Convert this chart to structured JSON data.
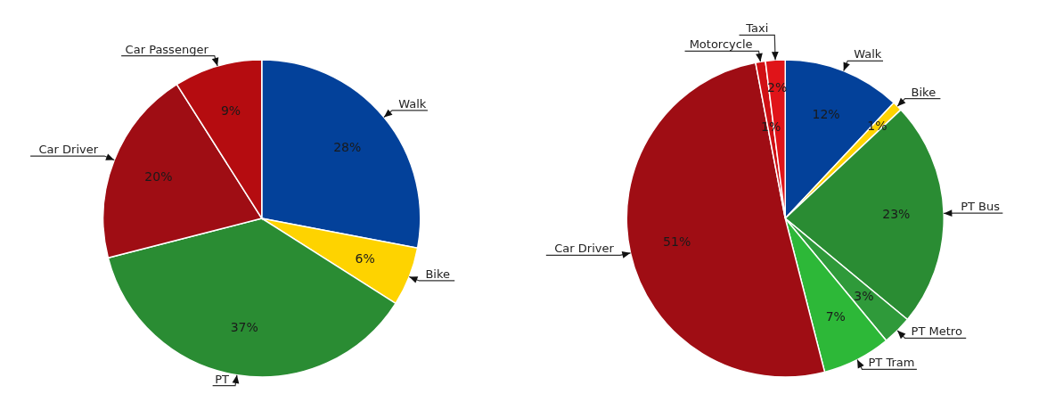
{
  "chart_data": [
    {
      "type": "pie",
      "categories": [
        "Walk",
        "Bike",
        "PT",
        "Car Driver",
        "Car Passenger"
      ],
      "values": [
        28,
        6,
        37,
        20,
        9
      ],
      "colors": [
        "#03419a",
        "#fed300",
        "#2a8c33",
        "#9f0d14",
        "#b50c10"
      ],
      "value_labels": [
        "28%",
        "6%",
        "37%",
        "20%",
        "9%"
      ]
    },
    {
      "type": "pie",
      "categories": [
        "Walk",
        "Bike",
        "PT Bus",
        "PT Metro",
        "PT Tram",
        "Car Driver",
        "Motorcycle",
        "Taxi"
      ],
      "values": [
        12,
        1,
        23,
        3,
        7,
        51,
        1,
        2
      ],
      "colors": [
        "#03419a",
        "#fed300",
        "#2a8c33",
        "#2f9a3a",
        "#2db838",
        "#9f0d14",
        "#d01014",
        "#e01419"
      ],
      "value_labels": [
        "12%",
        "1%",
        "23%",
        "3%",
        "7%",
        "51%",
        "1%",
        "2%"
      ]
    }
  ]
}
